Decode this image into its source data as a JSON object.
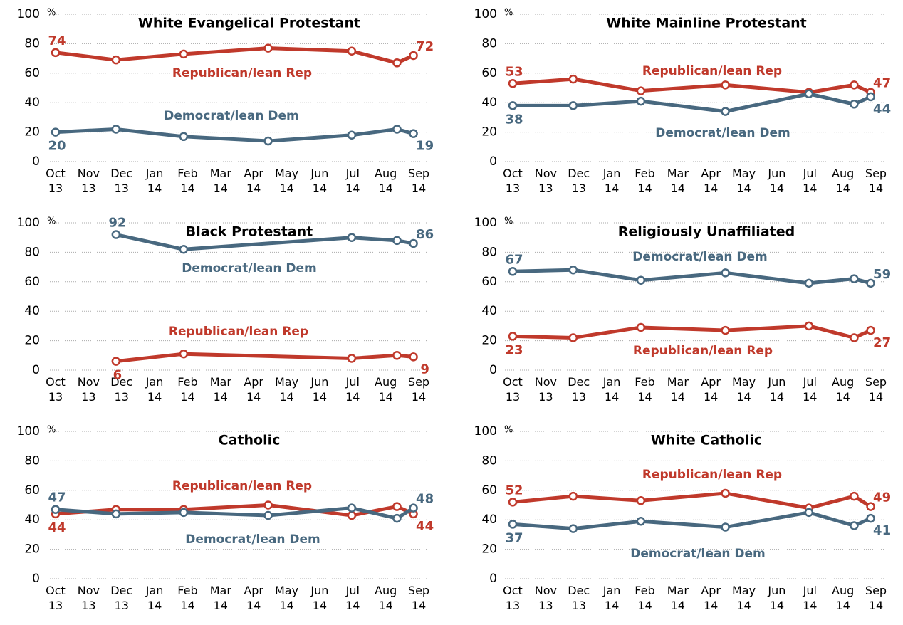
{
  "chart_data": [
    {
      "type": "line",
      "title": "White Evangelical Protestant",
      "y_unit": "%",
      "x": [
        0,
        1.83,
        3.88,
        6.44,
        8.97,
        10.34,
        10.84
      ],
      "xlim": [
        0,
        11
      ],
      "xticks": [
        {
          "value": 0,
          "label": "Oct 13"
        },
        {
          "value": 1,
          "label": "Nov 13"
        },
        {
          "value": 2,
          "label": "Dec 13"
        },
        {
          "value": 3,
          "label": "Jan 14"
        },
        {
          "value": 4,
          "label": "Feb 14"
        },
        {
          "value": 5,
          "label": "Mar 14"
        },
        {
          "value": 6,
          "label": "Apr 14"
        },
        {
          "value": 7,
          "label": "May 14"
        },
        {
          "value": 8,
          "label": "Jun 14"
        },
        {
          "value": 9,
          "label": "Jul 14"
        },
        {
          "value": 10,
          "label": "Aug 14"
        },
        {
          "value": 11,
          "label": "Sep 14"
        }
      ],
      "ylim": [
        0,
        100
      ],
      "yticks": [
        0,
        20,
        40,
        60,
        80,
        100
      ],
      "grid": true,
      "series": [
        {
          "name": "Republican/lean Rep",
          "color": "#c0392b",
          "values": [
            74,
            69,
            73,
            77,
            75,
            67,
            72
          ]
        },
        {
          "name": "Democrat/lean Dem",
          "color": "#48687f",
          "values": [
            20,
            22,
            17,
            14,
            18,
            22,
            19
          ]
        }
      ]
    },
    {
      "type": "line",
      "title": "White Mainline Protestant",
      "y_unit": "%",
      "x": [
        0,
        1.83,
        3.88,
        6.44,
        8.97,
        10.34,
        10.84
      ],
      "xlim": [
        0,
        11
      ],
      "xticks": [
        {
          "value": 0,
          "label": "Oct 13"
        },
        {
          "value": 1,
          "label": "Nov 13"
        },
        {
          "value": 2,
          "label": "Dec 13"
        },
        {
          "value": 3,
          "label": "Jan 14"
        },
        {
          "value": 4,
          "label": "Feb 14"
        },
        {
          "value": 5,
          "label": "Mar 14"
        },
        {
          "value": 6,
          "label": "Apr 14"
        },
        {
          "value": 7,
          "label": "May 14"
        },
        {
          "value": 8,
          "label": "Jun 14"
        },
        {
          "value": 9,
          "label": "Jul 14"
        },
        {
          "value": 10,
          "label": "Aug 14"
        },
        {
          "value": 11,
          "label": "Sep 14"
        }
      ],
      "ylim": [
        0,
        100
      ],
      "yticks": [
        0,
        20,
        40,
        60,
        80,
        100
      ],
      "grid": true,
      "series": [
        {
          "name": "Republican/lean Rep",
          "color": "#c0392b",
          "values": [
            53,
            56,
            48,
            52,
            47,
            52,
            47
          ]
        },
        {
          "name": "Democrat/lean Dem",
          "color": "#48687f",
          "values": [
            38,
            38,
            41,
            34,
            46,
            39,
            44
          ]
        }
      ]
    },
    {
      "type": "line",
      "title": "Black Protestant",
      "y_unit": "%",
      "x": [
        1.83,
        3.88,
        8.97,
        10.34,
        10.84
      ],
      "xlim": [
        0,
        11
      ],
      "xticks": [
        {
          "value": 0,
          "label": "Oct 13"
        },
        {
          "value": 1,
          "label": "Nov 13"
        },
        {
          "value": 2,
          "label": "Dec 13"
        },
        {
          "value": 3,
          "label": "Jan 14"
        },
        {
          "value": 4,
          "label": "Feb 14"
        },
        {
          "value": 5,
          "label": "Mar 14"
        },
        {
          "value": 6,
          "label": "Apr 14"
        },
        {
          "value": 7,
          "label": "May 14"
        },
        {
          "value": 8,
          "label": "Jun 14"
        },
        {
          "value": 9,
          "label": "Jul 14"
        },
        {
          "value": 10,
          "label": "Aug 14"
        },
        {
          "value": 11,
          "label": "Sep 14"
        }
      ],
      "ylim": [
        0,
        100
      ],
      "yticks": [
        0,
        20,
        40,
        60,
        80,
        100
      ],
      "grid": true,
      "series": [
        {
          "name": "Democrat/lean Dem",
          "color": "#48687f",
          "values": [
            92,
            82,
            90,
            88,
            86
          ]
        },
        {
          "name": "Republican/lean Rep",
          "color": "#c0392b",
          "values": [
            6,
            11,
            8,
            10,
            9
          ]
        }
      ]
    },
    {
      "type": "line",
      "title": "Religiously Unaffiliated",
      "y_unit": "%",
      "x": [
        0,
        1.83,
        3.88,
        6.44,
        8.97,
        10.34,
        10.84
      ],
      "xlim": [
        0,
        11
      ],
      "xticks": [
        {
          "value": 0,
          "label": "Oct 13"
        },
        {
          "value": 1,
          "label": "Nov 13"
        },
        {
          "value": 2,
          "label": "Dec 13"
        },
        {
          "value": 3,
          "label": "Jan 14"
        },
        {
          "value": 4,
          "label": "Feb 14"
        },
        {
          "value": 5,
          "label": "Mar 14"
        },
        {
          "value": 6,
          "label": "Apr 14"
        },
        {
          "value": 7,
          "label": "May 14"
        },
        {
          "value": 8,
          "label": "Jun 14"
        },
        {
          "value": 9,
          "label": "Jul 14"
        },
        {
          "value": 10,
          "label": "Aug 14"
        },
        {
          "value": 11,
          "label": "Sep 14"
        }
      ],
      "ylim": [
        0,
        100
      ],
      "yticks": [
        0,
        20,
        40,
        60,
        80,
        100
      ],
      "grid": true,
      "series": [
        {
          "name": "Democrat/lean Dem",
          "color": "#48687f",
          "values": [
            67,
            68,
            61,
            66,
            59,
            62,
            59
          ]
        },
        {
          "name": "Republican/lean Rep",
          "color": "#c0392b",
          "values": [
            23,
            22,
            29,
            27,
            30,
            22,
            27
          ]
        }
      ]
    },
    {
      "type": "line",
      "title": "Catholic",
      "y_unit": "%",
      "x": [
        0,
        1.83,
        3.88,
        6.44,
        8.97,
        10.34,
        10.84
      ],
      "xlim": [
        0,
        11
      ],
      "xticks": [
        {
          "value": 0,
          "label": "Oct 13"
        },
        {
          "value": 1,
          "label": "Nov 13"
        },
        {
          "value": 2,
          "label": "Dec 13"
        },
        {
          "value": 3,
          "label": "Jan 14"
        },
        {
          "value": 4,
          "label": "Feb 14"
        },
        {
          "value": 5,
          "label": "Mar 14"
        },
        {
          "value": 6,
          "label": "Apr 14"
        },
        {
          "value": 7,
          "label": "May 14"
        },
        {
          "value": 8,
          "label": "Jun 14"
        },
        {
          "value": 9,
          "label": "Jul 14"
        },
        {
          "value": 10,
          "label": "Aug 14"
        },
        {
          "value": 11,
          "label": "Sep 14"
        }
      ],
      "ylim": [
        0,
        100
      ],
      "yticks": [
        0,
        20,
        40,
        60,
        80,
        100
      ],
      "grid": true,
      "series": [
        {
          "name": "Republican/lean Rep",
          "color": "#c0392b",
          "values": [
            44,
            47,
            47,
            50,
            43,
            49,
            44
          ]
        },
        {
          "name": "Democrat/lean Dem",
          "color": "#48687f",
          "values": [
            47,
            44,
            45,
            43,
            48,
            41,
            48
          ]
        }
      ]
    },
    {
      "type": "line",
      "title": "White Catholic",
      "y_unit": "%",
      "x": [
        0,
        1.83,
        3.88,
        6.44,
        8.97,
        10.34,
        10.84
      ],
      "xlim": [
        0,
        11
      ],
      "xticks": [
        {
          "value": 0,
          "label": "Oct 13"
        },
        {
          "value": 1,
          "label": "Nov 13"
        },
        {
          "value": 2,
          "label": "Dec 13"
        },
        {
          "value": 3,
          "label": "Jan 14"
        },
        {
          "value": 4,
          "label": "Feb 14"
        },
        {
          "value": 5,
          "label": "Mar 14"
        },
        {
          "value": 6,
          "label": "Apr 14"
        },
        {
          "value": 7,
          "label": "May 14"
        },
        {
          "value": 8,
          "label": "Jun 14"
        },
        {
          "value": 9,
          "label": "Jul 14"
        },
        {
          "value": 10,
          "label": "Aug 14"
        },
        {
          "value": 11,
          "label": "Sep 14"
        }
      ],
      "ylim": [
        0,
        100
      ],
      "yticks": [
        0,
        20,
        40,
        60,
        80,
        100
      ],
      "grid": true,
      "series": [
        {
          "name": "Republican/lean Rep",
          "color": "#c0392b",
          "values": [
            52,
            56,
            53,
            58,
            48,
            56,
            49
          ]
        },
        {
          "name": "Democrat/lean Dem",
          "color": "#48687f",
          "values": [
            37,
            34,
            39,
            35,
            45,
            36,
            41
          ]
        }
      ]
    }
  ]
}
